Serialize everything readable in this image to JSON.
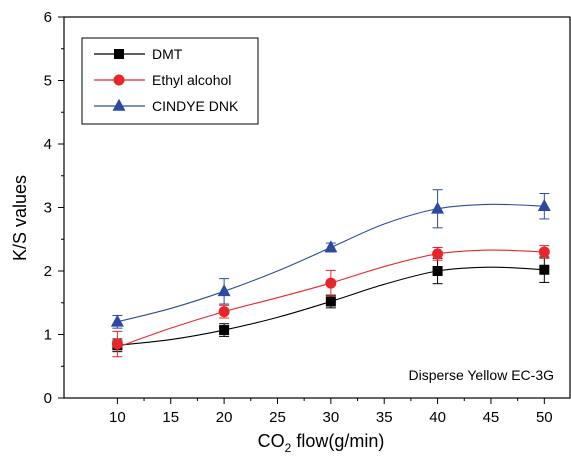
{
  "chart_data": {
    "type": "line",
    "xlabel": "CO2 flow(g/min)",
    "xlabel_parts": {
      "prefix": "CO",
      "subscript": "2",
      "suffix": " flow(g/min)"
    },
    "ylabel": "K/S values",
    "xlim": [
      5,
      52.5
    ],
    "ylim": [
      0,
      6
    ],
    "x_ticks": [
      10,
      15,
      20,
      25,
      30,
      35,
      40,
      45,
      50
    ],
    "y_ticks": [
      0,
      1,
      2,
      3,
      4,
      5,
      6
    ],
    "grid": false,
    "legend_placement": "top-left",
    "annotation": "Disperse Yellow EC-3G",
    "x": [
      10,
      20,
      30,
      40,
      50
    ],
    "series": [
      {
        "name": "DMT",
        "color": "#000000",
        "marker": "square",
        "values": [
          0.83,
          1.07,
          1.52,
          2.0,
          2.02
        ],
        "errors": [
          0.1,
          0.1,
          0.1,
          0.2,
          0.2
        ],
        "fit": [
          [
            10,
            0.83
          ],
          [
            15,
            0.92
          ],
          [
            20,
            1.07
          ],
          [
            25,
            1.27
          ],
          [
            30,
            1.52
          ],
          [
            35,
            1.79
          ],
          [
            40,
            2.0
          ],
          [
            45,
            2.06
          ],
          [
            50,
            2.02
          ]
        ]
      },
      {
        "name": "Ethyl alcohol",
        "color": "#e8262a",
        "marker": "circle",
        "values": [
          0.85,
          1.36,
          1.81,
          2.27,
          2.3
        ],
        "errors": [
          0.2,
          0.1,
          0.2,
          0.1,
          0.1
        ],
        "fit": [
          [
            10,
            0.8
          ],
          [
            15,
            1.1
          ],
          [
            20,
            1.36
          ],
          [
            25,
            1.58
          ],
          [
            30,
            1.81
          ],
          [
            35,
            2.07
          ],
          [
            40,
            2.27
          ],
          [
            45,
            2.33
          ],
          [
            50,
            2.3
          ]
        ]
      },
      {
        "name": "CINDYE DNK",
        "color": "#2e4a9e",
        "marker": "triangle",
        "values": [
          1.2,
          1.68,
          2.37,
          2.98,
          3.02
        ],
        "errors": [
          0.1,
          0.2,
          0.07,
          0.3,
          0.2
        ],
        "fit": [
          [
            10,
            1.2
          ],
          [
            15,
            1.41
          ],
          [
            20,
            1.68
          ],
          [
            25,
            2.0
          ],
          [
            30,
            2.37
          ],
          [
            35,
            2.74
          ],
          [
            40,
            2.98
          ],
          [
            45,
            3.05
          ],
          [
            50,
            3.02
          ]
        ]
      }
    ]
  }
}
